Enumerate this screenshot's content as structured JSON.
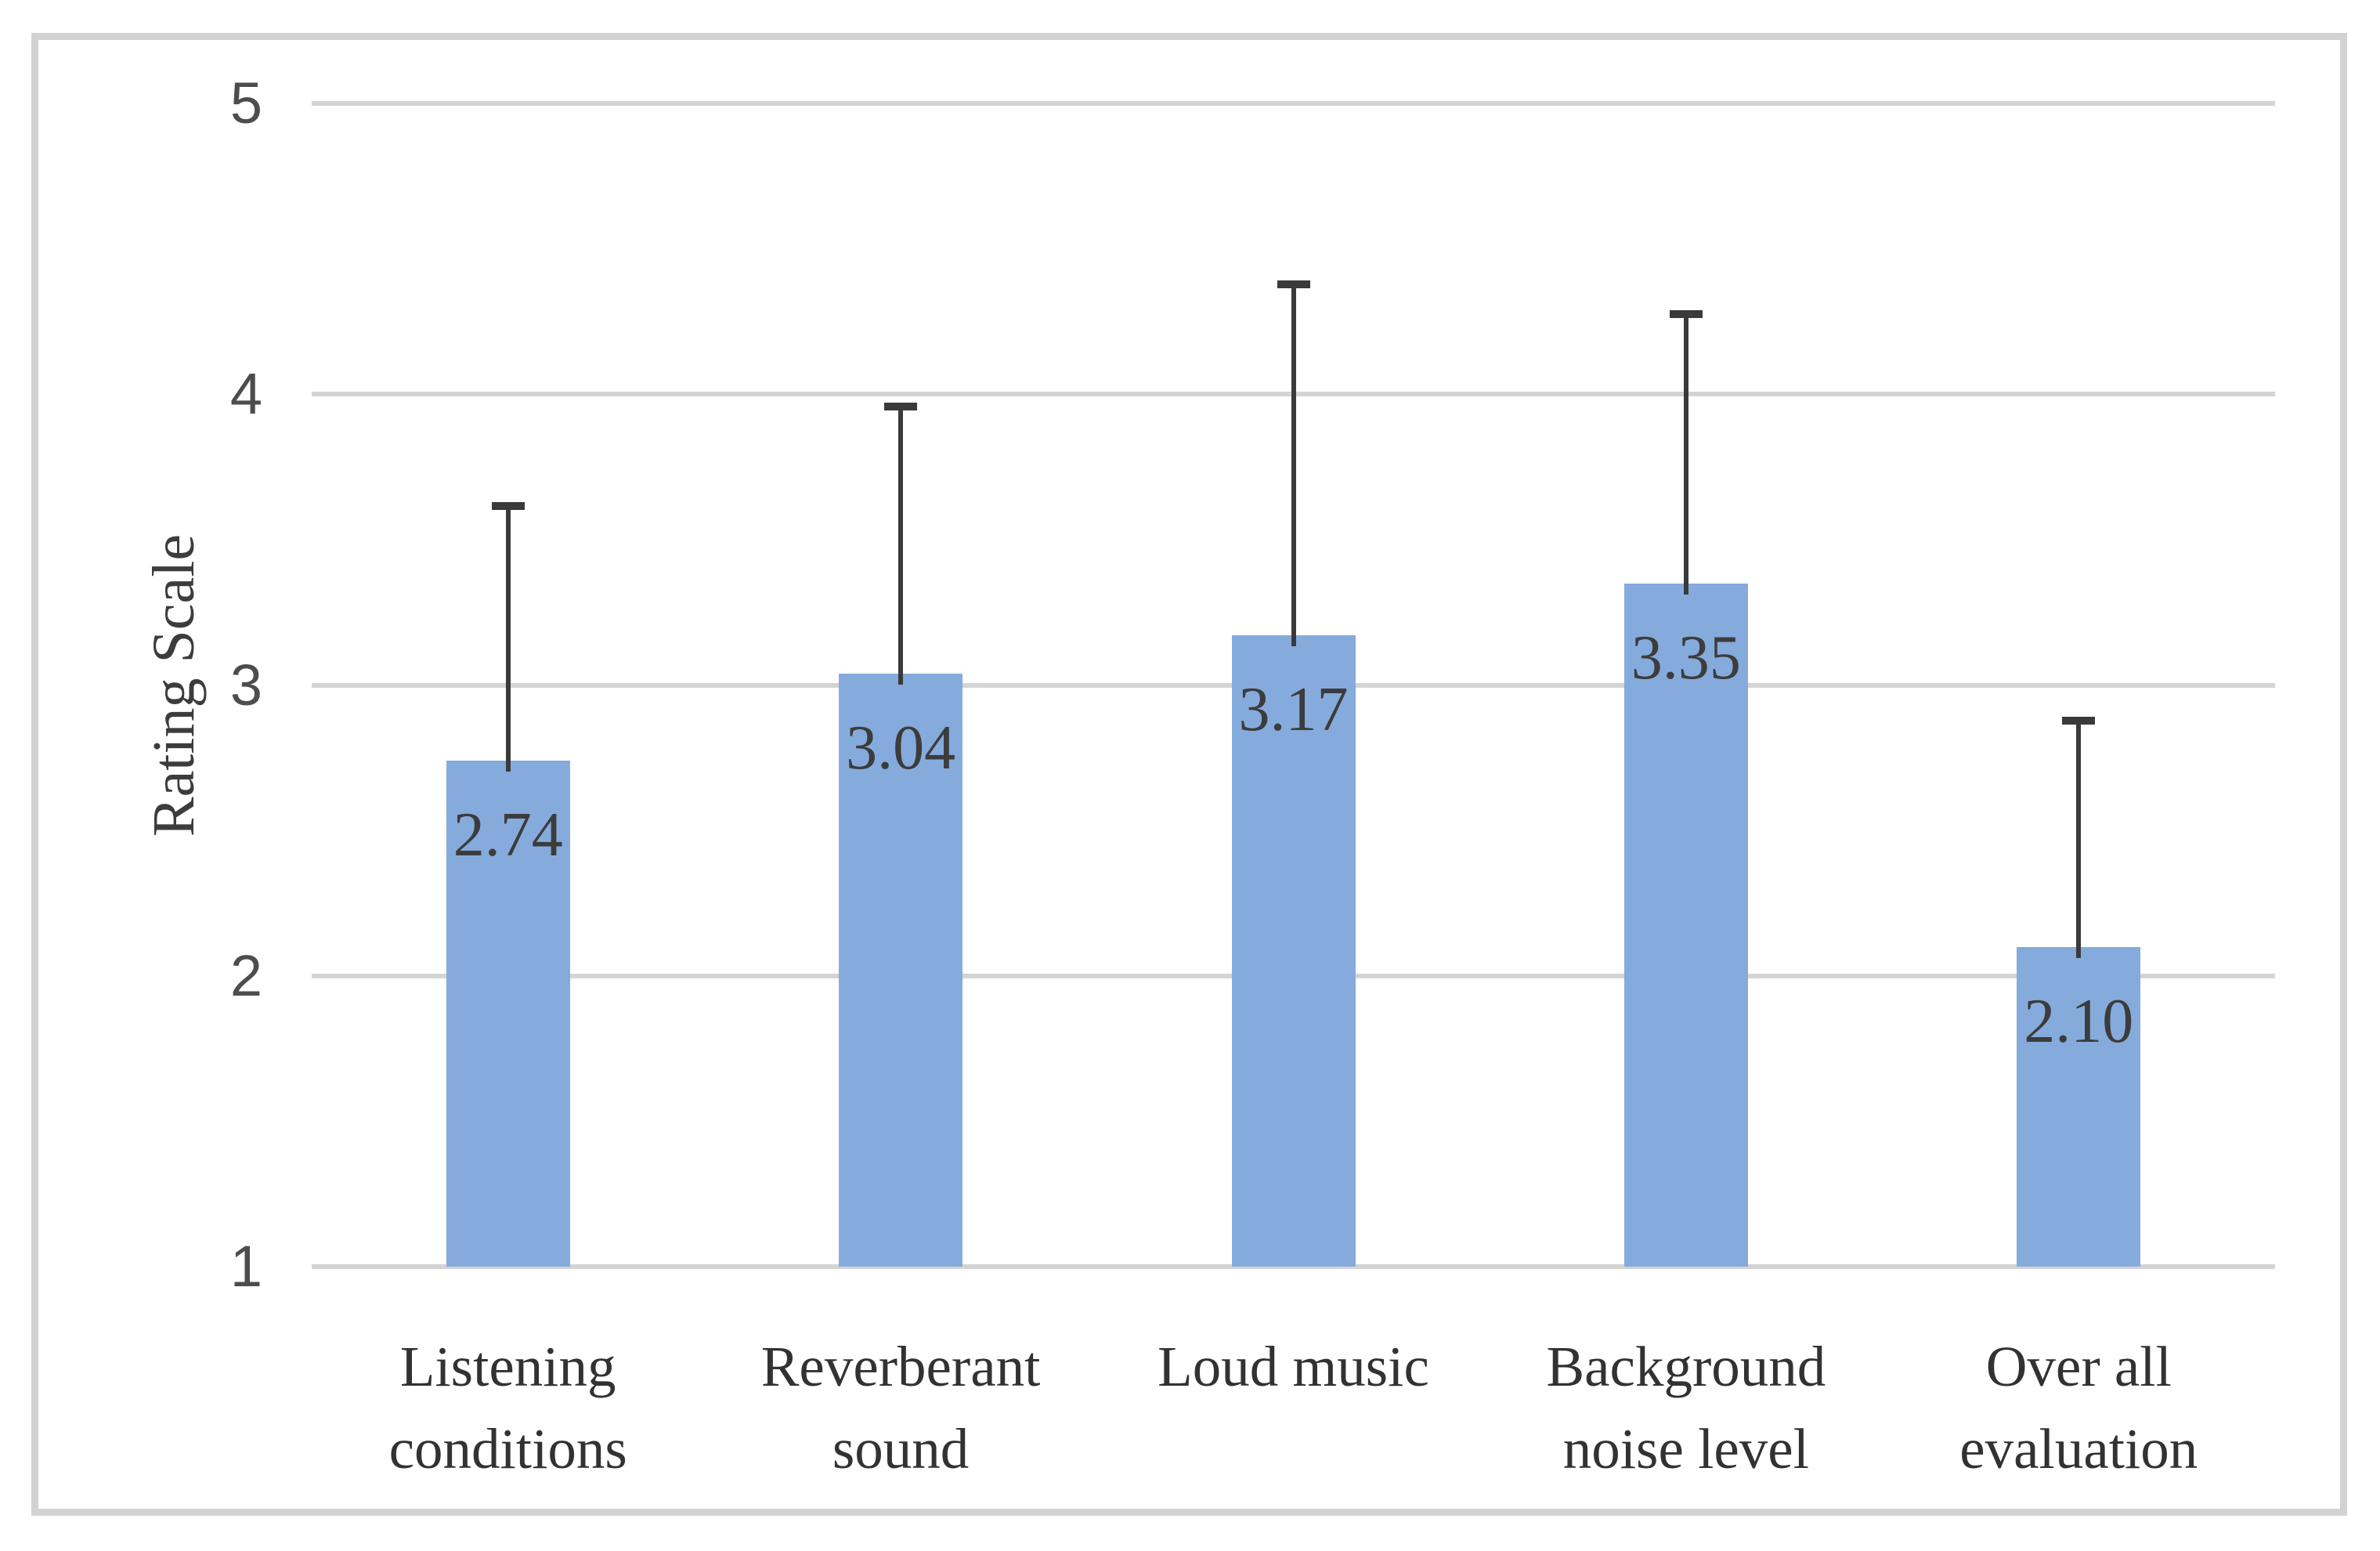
{
  "chart_data": {
    "type": "bar",
    "title": "",
    "xlabel": "",
    "ylabel": "Rating Scale",
    "categories": [
      "Listening conditions",
      "Reverberant sound",
      "Loud music",
      "Background noise level",
      "Over all evaluation"
    ],
    "values": [
      2.74,
      3.04,
      3.17,
      3.35,
      2.1
    ],
    "value_labels": [
      "2.74",
      "3.04",
      "3.17",
      "3.35",
      "2.10"
    ],
    "error_top": [
      3.63,
      3.97,
      4.39,
      4.29,
      2.89
    ],
    "y_ticks": [
      1,
      2,
      3,
      4,
      5
    ],
    "y_tick_labels": [
      "1",
      "2",
      "3",
      "4",
      "5"
    ],
    "ylim": [
      1,
      5
    ],
    "grid": "horizontal",
    "legend": "none",
    "bar_color": "#85ABDC",
    "error_color": "#3a3a3a",
    "gridline_color": "#d4d4d4",
    "frame_color": "#d2d2d2",
    "value_label_color": "#3c3c3c",
    "category_label_color": "#323232",
    "tick_label_color": "#4d4d4d",
    "axis_title_color": "#3c3c3c"
  }
}
